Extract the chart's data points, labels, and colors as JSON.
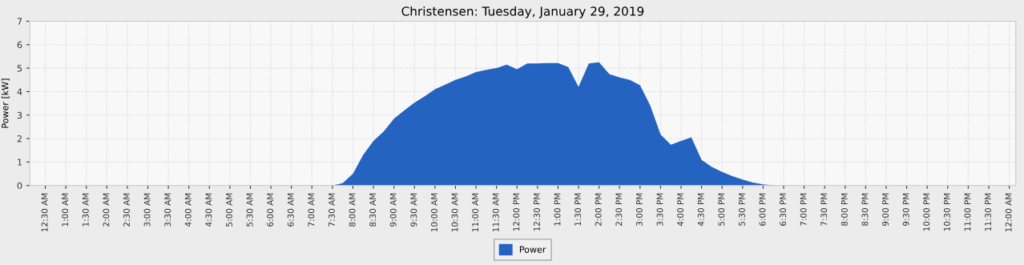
{
  "chart_data": {
    "type": "area",
    "title": "Christensen: Tuesday, January 29, 2019",
    "ylabel": "Power [kW]",
    "x": [
      0.25,
      7.5,
      7.75,
      8,
      8.25,
      8.5,
      8.75,
      9,
      9.25,
      9.5,
      9.75,
      10,
      10.25,
      10.5,
      10.75,
      11,
      11.25,
      11.5,
      11.75,
      12,
      12.25,
      12.5,
      12.75,
      13,
      13.25,
      13.5,
      13.75,
      14,
      14.25,
      14.5,
      14.75,
      15,
      15.25,
      15.5,
      15.75,
      16,
      16.25,
      16.5,
      16.75,
      17,
      17.25,
      17.5,
      17.75,
      18,
      18.25,
      18.5,
      24
    ],
    "series": [
      {
        "name": "Power",
        "color": "#2563c0",
        "values": [
          0,
          0,
          0.1,
          0.5,
          1.3,
          1.9,
          2.3,
          2.85,
          3.2,
          3.53,
          3.8,
          4.1,
          4.3,
          4.5,
          4.65,
          4.83,
          4.93,
          5.0,
          5.15,
          4.95,
          5.2,
          5.2,
          5.22,
          5.22,
          5.05,
          4.2,
          5.2,
          5.25,
          4.75,
          4.6,
          4.5,
          4.27,
          3.4,
          2.17,
          1.74,
          1.9,
          2.05,
          1.09,
          0.79,
          0.58,
          0.4,
          0.25,
          0.13,
          0.05,
          0.01,
          0,
          0
        ]
      }
    ],
    "xlim": [
      0.12,
      24.16
    ],
    "ylim": [
      0,
      7
    ],
    "yticks": [
      0,
      1,
      2,
      3,
      4,
      5,
      6,
      7
    ],
    "xticks": [
      {
        "value": 0.5,
        "label": "12:30 AM"
      },
      {
        "value": 1,
        "label": "1:00 AM"
      },
      {
        "value": 1.5,
        "label": "1:30 AM"
      },
      {
        "value": 2,
        "label": "2:00 AM"
      },
      {
        "value": 2.5,
        "label": "2:30 AM"
      },
      {
        "value": 3,
        "label": "3:00 AM"
      },
      {
        "value": 3.5,
        "label": "3:30 AM"
      },
      {
        "value": 4,
        "label": "4:00 AM"
      },
      {
        "value": 4.5,
        "label": "4:30 AM"
      },
      {
        "value": 5,
        "label": "5:00 AM"
      },
      {
        "value": 5.5,
        "label": "5:30 AM"
      },
      {
        "value": 6,
        "label": "6:00 AM"
      },
      {
        "value": 6.5,
        "label": "6:30 AM"
      },
      {
        "value": 7,
        "label": "7:00 AM"
      },
      {
        "value": 7.5,
        "label": "7:30 AM"
      },
      {
        "value": 8,
        "label": "8:00 AM"
      },
      {
        "value": 8.5,
        "label": "8:30 AM"
      },
      {
        "value": 9,
        "label": "9:00 AM"
      },
      {
        "value": 9.5,
        "label": "9:30 AM"
      },
      {
        "value": 10,
        "label": "10:00 AM"
      },
      {
        "value": 10.5,
        "label": "10:30 AM"
      },
      {
        "value": 11,
        "label": "11:00 AM"
      },
      {
        "value": 11.5,
        "label": "11:30 AM"
      },
      {
        "value": 12,
        "label": "12:00 PM"
      },
      {
        "value": 12.5,
        "label": "12:30 PM"
      },
      {
        "value": 13,
        "label": "1:00 PM"
      },
      {
        "value": 13.5,
        "label": "1:30 PM"
      },
      {
        "value": 14,
        "label": "2:00 PM"
      },
      {
        "value": 14.5,
        "label": "2:30 PM"
      },
      {
        "value": 15,
        "label": "3:00 PM"
      },
      {
        "value": 15.5,
        "label": "3:30 PM"
      },
      {
        "value": 16,
        "label": "4:00 PM"
      },
      {
        "value": 16.5,
        "label": "4:30 PM"
      },
      {
        "value": 17,
        "label": "5:00 PM"
      },
      {
        "value": 17.5,
        "label": "5:30 PM"
      },
      {
        "value": 18,
        "label": "6:00 PM"
      },
      {
        "value": 18.5,
        "label": "6:30 PM"
      },
      {
        "value": 19,
        "label": "7:00 PM"
      },
      {
        "value": 19.5,
        "label": "7:30 PM"
      },
      {
        "value": 20,
        "label": "8:00 PM"
      },
      {
        "value": 20.5,
        "label": "8:30 PM"
      },
      {
        "value": 21,
        "label": "9:00 PM"
      },
      {
        "value": 21.5,
        "label": "9:30 PM"
      },
      {
        "value": 22,
        "label": "10:00 PM"
      },
      {
        "value": 22.5,
        "label": "10:30 PM"
      },
      {
        "value": 23,
        "label": "11:00 PM"
      },
      {
        "value": 23.5,
        "label": "11:30 PM"
      },
      {
        "value": 24,
        "label": "12:00 AM"
      }
    ],
    "grid": true,
    "legend": "bottom"
  }
}
